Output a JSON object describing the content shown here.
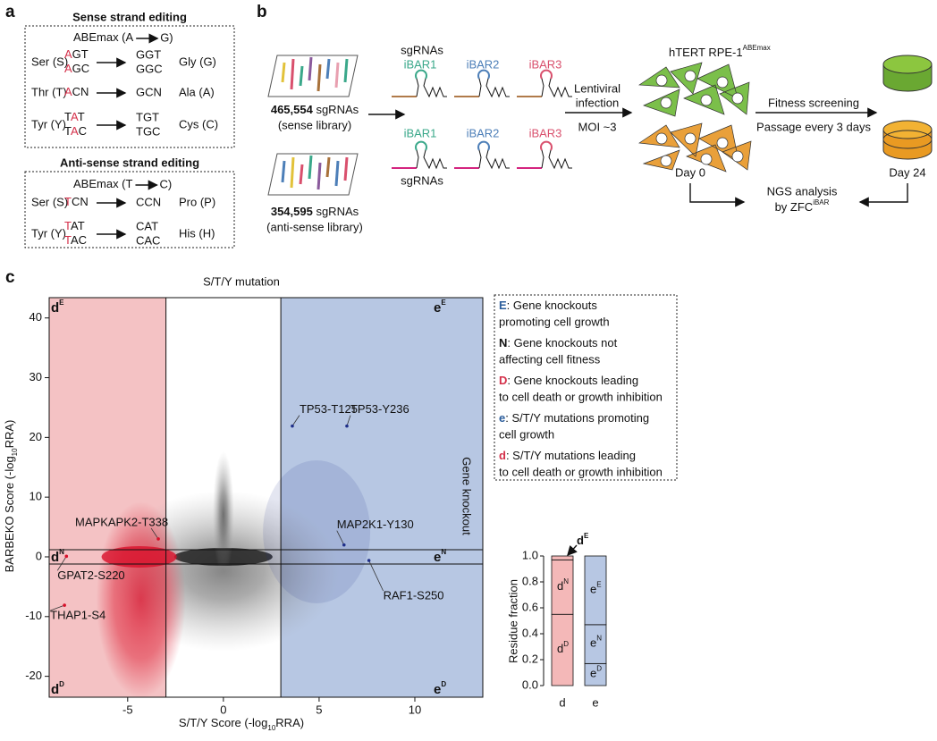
{
  "panel_labels": [
    "a",
    "b",
    "c"
  ],
  "panel_a": {
    "sense": {
      "title": "Sense strand editing",
      "enzyme": {
        "name": "ABEmax (A",
        "product": "G)"
      },
      "rows": [
        {
          "from": "Ser (S)",
          "codons": [
            {
              "hit": "A",
              "rest": "GT"
            },
            {
              "hit": "A",
              "rest": "GC"
            }
          ],
          "products": [
            "GGT",
            "GGC"
          ],
          "to": "Gly (G)"
        },
        {
          "from": "Thr (T)",
          "codons": [
            {
              "hit": "A",
              "rest": "CN"
            }
          ],
          "products": [
            "GCN"
          ],
          "to": "Ala (A)"
        },
        {
          "from": "Tyr (Y)",
          "codons": [
            {
              "pre": "T",
              "hit": "A",
              "rest": "T"
            },
            {
              "pre": "T",
              "hit": "A",
              "rest": "C"
            }
          ],
          "products": [
            "TGT",
            "TGC"
          ],
          "to": "Cys (C)"
        }
      ]
    },
    "antisense": {
      "title": "Anti-sense strand editing",
      "enzyme": {
        "name": "ABEmax (T",
        "product": "C)"
      },
      "rows": [
        {
          "from": "Ser (S)",
          "codons": [
            {
              "hit": "T",
              "rest": "CN"
            }
          ],
          "products": [
            "CCN"
          ],
          "to": "Pro (P)"
        },
        {
          "from": "Tyr (Y)",
          "codons": [
            {
              "hit": "T",
              "rest": "AT"
            },
            {
              "hit": "T",
              "rest": "AC"
            }
          ],
          "products": [
            "CAT",
            "CAC"
          ],
          "to": "His (H)"
        }
      ]
    }
  },
  "panel_b": {
    "sense_library": {
      "count": "465,554",
      "unit": " sgRNAs",
      "name": "(sense library)"
    },
    "antisense_library": {
      "count": "354,595",
      "unit": " sgRNAs",
      "name": "(anti-sense library)"
    },
    "sgrna_label": [
      "sgRNAs",
      "sgRNAs"
    ],
    "ibars": [
      "iBAR1",
      "iBAR2",
      "iBAR3"
    ],
    "ibar_colors": [
      "#3aa88a",
      "#4d7fb8",
      "#d9506d"
    ],
    "infection": [
      "Lentiviral",
      "infection"
    ],
    "moi": "MOI ~3",
    "cell_line": {
      "base": "hTERT RPE-1",
      "sup": "ABEmax"
    },
    "day0": "Day 0",
    "screening": [
      "Fitness screening",
      "Passage every 3 days"
    ],
    "day24": "Day 24",
    "ngs": [
      "NGS analysis",
      {
        "base": "by ZFC",
        "sup": "iBAR"
      }
    ]
  },
  "scatter": {
    "type": "scatter",
    "title": "S/T/Y mutation",
    "right_label": "Gene knockout",
    "xlabel": {
      "pre": "S/T/Y Score (-log",
      "sub": "10",
      "post": "RRA)"
    },
    "ylabel": {
      "pre": "BARBEKO Score (-log",
      "sub": "10",
      "post": "RRA)"
    },
    "xlim": [
      -9.1,
      13.55
    ],
    "ylim": [
      -23.5,
      43.4
    ],
    "xticks": [
      -5,
      0,
      5,
      10
    ],
    "yticks": [
      -20,
      -10,
      0,
      10,
      20,
      30,
      40
    ],
    "cutoffs": {
      "x": [
        -3,
        3
      ],
      "y": [
        -1.2,
        1.2
      ]
    },
    "region_colors": [
      "#f4c2c4",
      "#b7c7e3"
    ],
    "quadrants": [
      {
        "base": "d",
        "sup": "E"
      },
      {
        "base": "e",
        "sup": "E"
      },
      {
        "base": "d",
        "sup": "N"
      },
      {
        "base": "e",
        "sup": "N"
      },
      {
        "base": "d",
        "sup": "D"
      },
      {
        "base": "e",
        "sup": "D"
      }
    ],
    "points": [
      {
        "label": "TP53-T125",
        "x": 3.6,
        "y": 21.9
      },
      {
        "label": "TP53-Y236",
        "x": 6.45,
        "y": 21.9
      },
      {
        "label": "MAPKAPK2-T338",
        "x": -3.4,
        "y": 3.0
      },
      {
        "label": "MAP2K1-Y130",
        "x": 6.3,
        "y": 2.0
      },
      {
        "label": "GPAT2-S220",
        "x": -8.2,
        "y": 0.1
      },
      {
        "label": "RAF1-S250",
        "x": 7.6,
        "y": -0.6
      },
      {
        "label": "THAP1-S4",
        "x": -8.3,
        "y": -8.1
      }
    ]
  },
  "legend": [
    {
      "key": "E",
      "color": "#2b5d9b",
      "text": [
        ": Gene knockouts",
        "promoting cell growth"
      ]
    },
    {
      "key": "N",
      "color": "#111111",
      "text": [
        ": Gene knockouts not",
        "affecting cell fitness"
      ]
    },
    {
      "key": "D",
      "color": "#d4304a",
      "text": [
        ": Gene knockouts leading",
        "to cell death or growth inhibition"
      ]
    },
    {
      "key": "e",
      "color": "#2b5d9b",
      "text": [
        ": S/T/Y mutations promoting",
        "cell growth"
      ]
    },
    {
      "key": "d",
      "color": "#d4304a",
      "text": [
        ": S/T/Y mutations leading",
        "to cell death or growth inhibition"
      ]
    }
  ],
  "residue_chart": {
    "type": "stacked_bar",
    "ylabel": "Residue fraction",
    "ylim": [
      0,
      1
    ],
    "yticks": [
      {
        "value": 0,
        "label": "0.0"
      },
      0.2,
      0.4,
      0.6,
      0.8,
      {
        "value": 1,
        "label": "1.0"
      }
    ],
    "annotation": {
      "base": "d",
      "sup": "E"
    },
    "bars": [
      {
        "category": "d",
        "color": "#f4b8b8",
        "segments": [
          {
            "value": 0.55,
            "label": {
              "base": "d",
              "sup": "D"
            }
          },
          {
            "value": 0.42,
            "label": {
              "base": "d",
              "sup": "N"
            }
          },
          {
            "value": 0.03
          }
        ]
      },
      {
        "category": "e",
        "color": "#b7c7e3",
        "segments": [
          {
            "value": 0.17,
            "label": {
              "base": "e",
              "sup": "D"
            }
          },
          {
            "value": 0.3,
            "label": {
              "base": "e",
              "sup": "N"
            }
          },
          {
            "value": 0.53,
            "label": {
              "base": "e",
              "sup": "E"
            }
          }
        ]
      }
    ]
  }
}
